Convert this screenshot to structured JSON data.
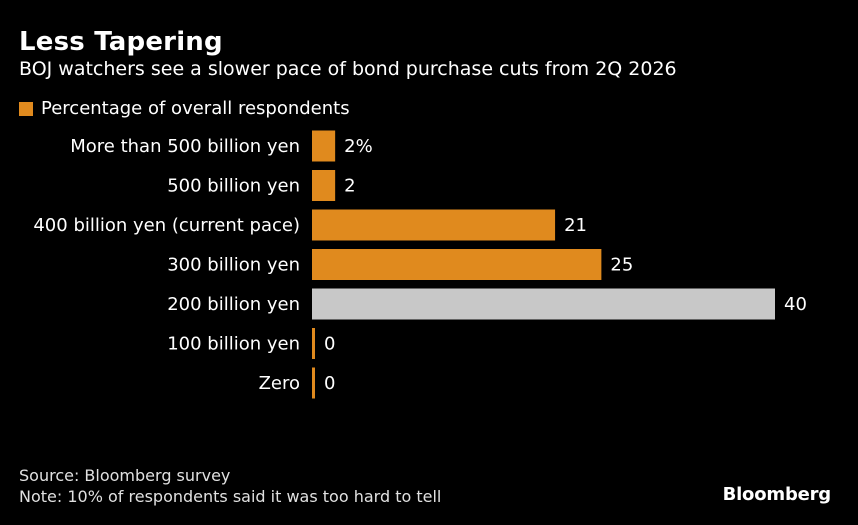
{
  "header": {
    "title": "Less Tapering",
    "subtitle": "BOJ watchers see a slower pace of bond purchase cuts from 2Q 2026"
  },
  "legend": {
    "label": "Percentage of overall respondents",
    "color": "#E08A1E"
  },
  "colors": {
    "accent": "#E08A1E",
    "highlight": "#C8C8C8",
    "background": "#000000",
    "text": "#FFFFFF"
  },
  "chart_data": {
    "type": "bar",
    "orientation": "horizontal",
    "title": "Less Tapering",
    "subtitle": "BOJ watchers see a slower pace of bond purchase cuts from 2Q 2026",
    "categories": [
      "More than 500 billion yen",
      "500 billion yen",
      "400 billion yen (current pace)",
      "300 billion yen",
      "200 billion yen",
      "100 billion yen",
      "Zero"
    ],
    "values": [
      2,
      2,
      21,
      25,
      40,
      0,
      0
    ],
    "value_labels": [
      "2%",
      "2",
      "21",
      "25",
      "40",
      "0",
      "0"
    ],
    "highlight_index": 4,
    "series_name": "Percentage of overall respondents",
    "xlim": [
      0,
      40
    ]
  },
  "footer": {
    "source": "Source: Bloomberg survey",
    "note": "Note: 10% of respondents said it was too hard to tell",
    "brand": "Bloomberg"
  }
}
